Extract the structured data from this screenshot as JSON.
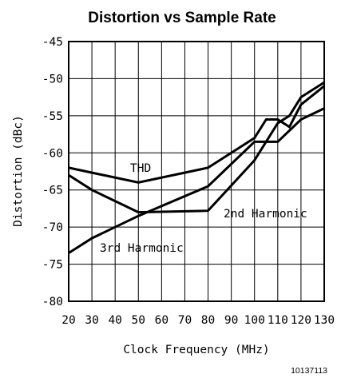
{
  "chart_data": {
    "type": "line",
    "title": "Distortion vs Sample Rate",
    "xlabel": "Clock Frequency (MHz)",
    "ylabel": "Distortion (dBc)",
    "xlim": [
      20,
      130
    ],
    "ylim": [
      -80,
      -45
    ],
    "x_ticks": [
      20,
      30,
      40,
      50,
      60,
      70,
      80,
      90,
      100,
      110,
      120,
      130
    ],
    "y_ticks": [
      -45,
      -50,
      -55,
      -60,
      -65,
      -70,
      -75,
      -80
    ],
    "grid": true,
    "series": [
      {
        "name": "THD",
        "x": [
          20,
          50,
          80,
          100,
          105,
          110,
          115,
          120,
          130
        ],
        "y": [
          -62,
          -64,
          -62,
          -58,
          -55.5,
          -55.5,
          -56.5,
          -53.5,
          -51
        ]
      },
      {
        "name": "2nd Harmonic",
        "x": [
          20,
          30,
          50,
          80,
          100,
          110,
          115,
          120,
          130
        ],
        "y": [
          -63,
          -65,
          -68,
          -67.8,
          -61,
          -56,
          -55,
          -52.5,
          -50.5
        ]
      },
      {
        "name": "3rd Harmonic",
        "x": [
          20,
          30,
          50,
          80,
          100,
          110,
          120,
          130
        ],
        "y": [
          -73.5,
          -71.5,
          -68.5,
          -64.5,
          -58.5,
          -58.5,
          -55.5,
          -54
        ]
      }
    ]
  },
  "figure_id": "10137113"
}
